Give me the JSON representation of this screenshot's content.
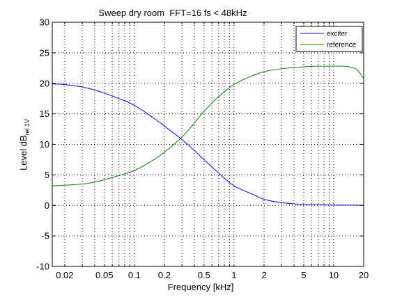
{
  "chart_data": {
    "type": "line",
    "title": "Sweep dry room  FFT=16 fs < 48kHz",
    "xlabel": "Frequency [kHz]",
    "ylabel": {
      "main": "Level dB",
      "subscript": "rel 1V"
    },
    "x_scale": "log",
    "xlim": [
      0.015,
      20
    ],
    "ylim": [
      -10,
      30
    ],
    "grid": true,
    "legend_position": "top-right",
    "x_ticks": [
      {
        "value": 0.02,
        "label": "0.02"
      },
      {
        "value": 0.05,
        "label": "0.05"
      },
      {
        "value": 0.1,
        "label": "0.1"
      },
      {
        "value": 0.2,
        "label": "0.2"
      },
      {
        "value": 0.5,
        "label": "0.5"
      },
      {
        "value": 1,
        "label": "1"
      },
      {
        "value": 2,
        "label": "2"
      },
      {
        "value": 5,
        "label": "5"
      },
      {
        "value": 10,
        "label": "10"
      },
      {
        "value": 20,
        "label": "20"
      }
    ],
    "y_ticks": [
      {
        "value": -10,
        "label": "-10"
      },
      {
        "value": -5,
        "label": "-5"
      },
      {
        "value": 0,
        "label": "0"
      },
      {
        "value": 5,
        "label": "5"
      },
      {
        "value": 10,
        "label": "10"
      },
      {
        "value": 15,
        "label": "15"
      },
      {
        "value": 20,
        "label": "20"
      },
      {
        "value": 25,
        "label": "25"
      },
      {
        "value": 30,
        "label": "30"
      }
    ],
    "series": [
      {
        "name": "exciter",
        "color": "#0000ff",
        "x": [
          0.015,
          0.02,
          0.03,
          0.04,
          0.05,
          0.07,
          0.1,
          0.15,
          0.2,
          0.3,
          0.4,
          0.5,
          0.7,
          1,
          1.5,
          2,
          3,
          5,
          7,
          10,
          15,
          20
        ],
        "y": [
          19.9,
          19.8,
          19.4,
          18.9,
          18.4,
          17.5,
          16.4,
          14.5,
          13.0,
          10.8,
          9.0,
          7.5,
          5.3,
          3.2,
          1.9,
          1.0,
          0.45,
          0.15,
          0.1,
          0.05,
          0.05,
          0.0
        ]
      },
      {
        "name": "reference",
        "color": "#008000",
        "x": [
          0.015,
          0.02,
          0.03,
          0.04,
          0.05,
          0.07,
          0.1,
          0.15,
          0.2,
          0.3,
          0.4,
          0.5,
          0.7,
          1,
          1.5,
          2,
          3,
          5,
          7,
          10,
          13,
          15,
          17,
          20
        ],
        "y": [
          3.2,
          3.3,
          3.5,
          3.8,
          4.2,
          4.9,
          5.7,
          7.3,
          8.7,
          11.2,
          13.5,
          15.4,
          17.8,
          19.8,
          21.2,
          21.9,
          22.4,
          22.7,
          22.8,
          22.8,
          22.8,
          22.6,
          22.3,
          20.8
        ]
      }
    ]
  }
}
